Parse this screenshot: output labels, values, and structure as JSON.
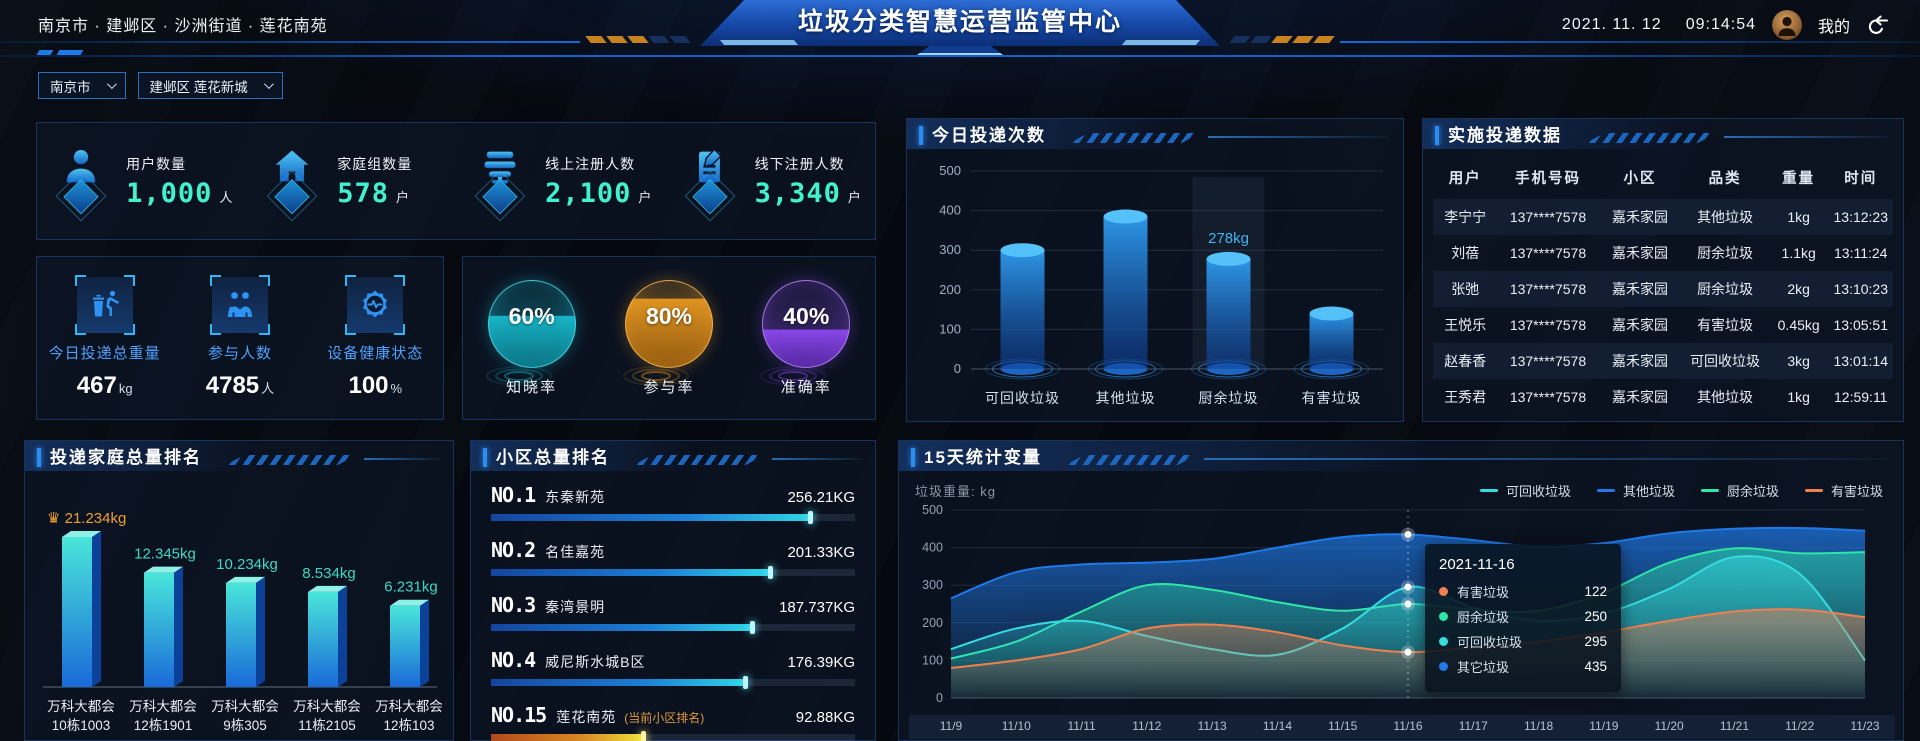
{
  "header": {
    "breadcrumb": "南京市 · 建邺区 · 沙洲街道 · 莲花南苑",
    "title": "垃圾分类智慧运营监管中心",
    "date": "2021. 11. 12",
    "time": "09:14:54",
    "user_label": "我的"
  },
  "filters": {
    "city": "南京市",
    "district": "建邺区 莲花新城"
  },
  "stats": {
    "items": [
      {
        "label": "用户数量",
        "value": "1,000",
        "unit": "人",
        "icon": "user-icon"
      },
      {
        "label": "家庭组数量",
        "value": "578",
        "unit": "户",
        "icon": "home-icon"
      },
      {
        "label": "线上注册人数",
        "value": "2,100",
        "unit": "户",
        "icon": "online-register-icon"
      },
      {
        "label": "线下注册人数",
        "value": "3,340",
        "unit": "户",
        "icon": "offline-register-icon"
      }
    ]
  },
  "today_metrics": {
    "items": [
      {
        "label": "今日投递总重量",
        "value": "467",
        "unit": "kg",
        "icon": "trash-drop-icon"
      },
      {
        "label": "参与人数",
        "value": "4785",
        "unit": "人",
        "icon": "people-icon"
      },
      {
        "label": "设备健康状态",
        "value": "100",
        "unit": "%",
        "icon": "device-health-icon"
      }
    ]
  },
  "rates": {
    "items": [
      {
        "label": "知晓率",
        "value": "60%",
        "pct": 60,
        "color": "#17b4c6"
      },
      {
        "label": "参与率",
        "value": "80%",
        "pct": 80,
        "color": "#df9422"
      },
      {
        "label": "准确率",
        "value": "40%",
        "pct": 40,
        "color": "#8a46e8"
      }
    ]
  },
  "today_counts": {
    "title": "今日投递次数",
    "chart_data": {
      "type": "bar",
      "categories": [
        "可回收垃圾",
        "其他垃圾",
        "厨余垃圾",
        "有害垃圾"
      ],
      "values": [
        300,
        385,
        278,
        140
      ],
      "highlight_index": 2,
      "highlight_label": "278kg",
      "ylim": [
        0,
        500
      ],
      "yticks": [
        0,
        100,
        200,
        300,
        400,
        500
      ]
    }
  },
  "delivery_table": {
    "title": "实施投递数据",
    "columns": [
      "用户",
      "手机号码",
      "小区",
      "品类",
      "重量",
      "时间"
    ],
    "rows": [
      [
        "李宁宁",
        "137****7578",
        "嘉禾家园",
        "其他垃圾",
        "1kg",
        "13:12:23"
      ],
      [
        "刘蓓",
        "137****7578",
        "嘉禾家园",
        "厨余垃圾",
        "1.1kg",
        "13:11:24"
      ],
      [
        "张弛",
        "137****7578",
        "嘉禾家园",
        "厨余垃圾",
        "2kg",
        "13:10:23"
      ],
      [
        "王悦乐",
        "137****7578",
        "嘉禾家园",
        "有害垃圾",
        "0.45kg",
        "13:05:51"
      ],
      [
        "赵春香",
        "137****7578",
        "嘉禾家园",
        "可回收垃圾",
        "3kg",
        "13:01:14"
      ],
      [
        "王秀君",
        "137****7578",
        "嘉禾家园",
        "其他垃圾",
        "1kg",
        "12:59:11"
      ]
    ]
  },
  "family_rank": {
    "title": "投递家庭总量排名",
    "chart_data": {
      "type": "bar",
      "categories": [
        [
          "万科大都会",
          "10栋1003"
        ],
        [
          "万科大都会",
          "12栋1901"
        ],
        [
          "万科大都会",
          "9栋305"
        ],
        [
          "万科大都会",
          "11栋2105"
        ],
        [
          "万科大都会",
          "12栋103"
        ]
      ],
      "values": [
        21.234,
        12.345,
        10.234,
        8.534,
        6.231
      ],
      "labels": [
        "21.234kg",
        "12.345kg",
        "10.234kg",
        "8.534kg",
        "6.231kg"
      ],
      "top_color": "#f0a030",
      "label_color": "#3fd8c4"
    }
  },
  "community_rank": {
    "title": "小区总量排名",
    "rows": [
      {
        "rank": "NO.1",
        "name": "东秦新苑",
        "note": "",
        "value": "256.21KG",
        "pct": 88,
        "current": false
      },
      {
        "rank": "NO.2",
        "name": "名佳嘉苑",
        "note": "",
        "value": "201.33KG",
        "pct": 77,
        "current": false
      },
      {
        "rank": "NO.3",
        "name": "秦湾景明",
        "note": "",
        "value": "187.737KG",
        "pct": 72,
        "current": false
      },
      {
        "rank": "NO.4",
        "name": "威尼斯水城B区",
        "note": "",
        "value": "176.39KG",
        "pct": 70,
        "current": false
      },
      {
        "rank": "NO.15",
        "name": "莲花南苑",
        "note": "(当前小区排名)",
        "value": "92.88KG",
        "pct": 42,
        "current": true
      }
    ]
  },
  "trend": {
    "title": "15天统计变量",
    "unit_label": "垃圾重量: kg",
    "chart_data": {
      "type": "area",
      "x": [
        "11/9",
        "11/10",
        "11/11",
        "11/12",
        "11/13",
        "11/14",
        "11/15",
        "11/16",
        "11/17",
        "11/18",
        "11/19",
        "11/20",
        "11/21",
        "11/22",
        "11/23"
      ],
      "ylim": [
        0,
        500
      ],
      "yticks": [
        0,
        100,
        200,
        300,
        400,
        500
      ],
      "legend": [
        {
          "label": "可回收垃圾",
          "color": "#35dce0"
        },
        {
          "label": "其他垃圾",
          "color": "#1f7ae8"
        },
        {
          "label": "厨余垃圾",
          "color": "#2ee6a6"
        },
        {
          "label": "有害垃圾",
          "color": "#f08050"
        }
      ],
      "series": [
        {
          "name": "其他垃圾",
          "color": "#1f7ae8",
          "values": [
            265,
            335,
            355,
            360,
            370,
            400,
            428,
            435,
            420,
            402,
            412,
            438,
            450,
            452,
            445
          ]
        },
        {
          "name": "厨余垃圾",
          "color": "#2ee6a6",
          "values": [
            105,
            150,
            230,
            300,
            288,
            255,
            232,
            250,
            235,
            232,
            280,
            360,
            398,
            385,
            388
          ]
        },
        {
          "name": "可回收垃圾",
          "color": "#35dce0",
          "values": [
            130,
            185,
            205,
            165,
            130,
            115,
            185,
            295,
            240,
            205,
            225,
            290,
            375,
            330,
            100
          ]
        },
        {
          "name": "有害垃圾",
          "color": "#f08050",
          "values": [
            80,
            100,
            130,
            185,
            195,
            175,
            140,
            122,
            135,
            150,
            175,
            205,
            230,
            235,
            215
          ]
        }
      ]
    },
    "tooltip": {
      "date": "2021-11-16",
      "x_index": 7,
      "rows": [
        {
          "name": "有害垃圾",
          "value": 122,
          "color": "#f08050"
        },
        {
          "name": "厨余垃圾",
          "value": 250,
          "color": "#2ee6a6"
        },
        {
          "name": "可回收垃圾",
          "value": 295,
          "color": "#35dce0"
        },
        {
          "name": "其它垃圾",
          "value": 435,
          "color": "#1f7ae8"
        }
      ]
    }
  }
}
